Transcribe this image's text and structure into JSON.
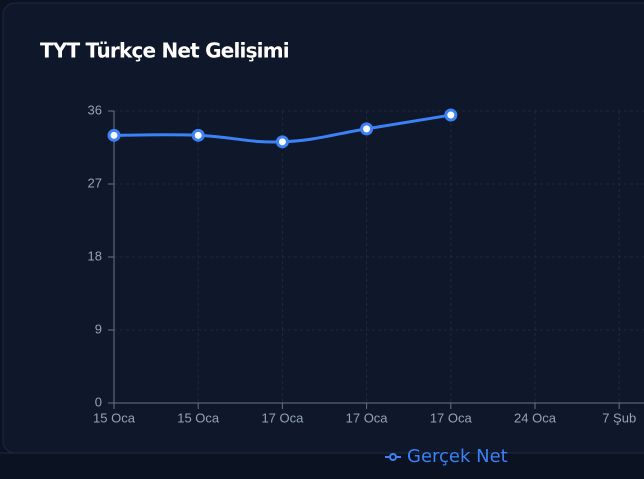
{
  "chart_data": {
    "type": "line",
    "title": "TYT Türkçe Net Gelişimi",
    "categories": [
      "15 Oca",
      "15 Oca",
      "17 Oca",
      "17 Oca",
      "17 Oca",
      "24 Oca",
      "7 Şub"
    ],
    "series": [
      {
        "name": "Gerçek Net",
        "color": "#3b82f6",
        "values": [
          33,
          33,
          32.2,
          33.8,
          35.5,
          null,
          null
        ]
      }
    ],
    "ylim": [
      0,
      36
    ],
    "yticks": [
      0,
      9,
      18,
      27,
      36
    ],
    "grid": true
  }
}
